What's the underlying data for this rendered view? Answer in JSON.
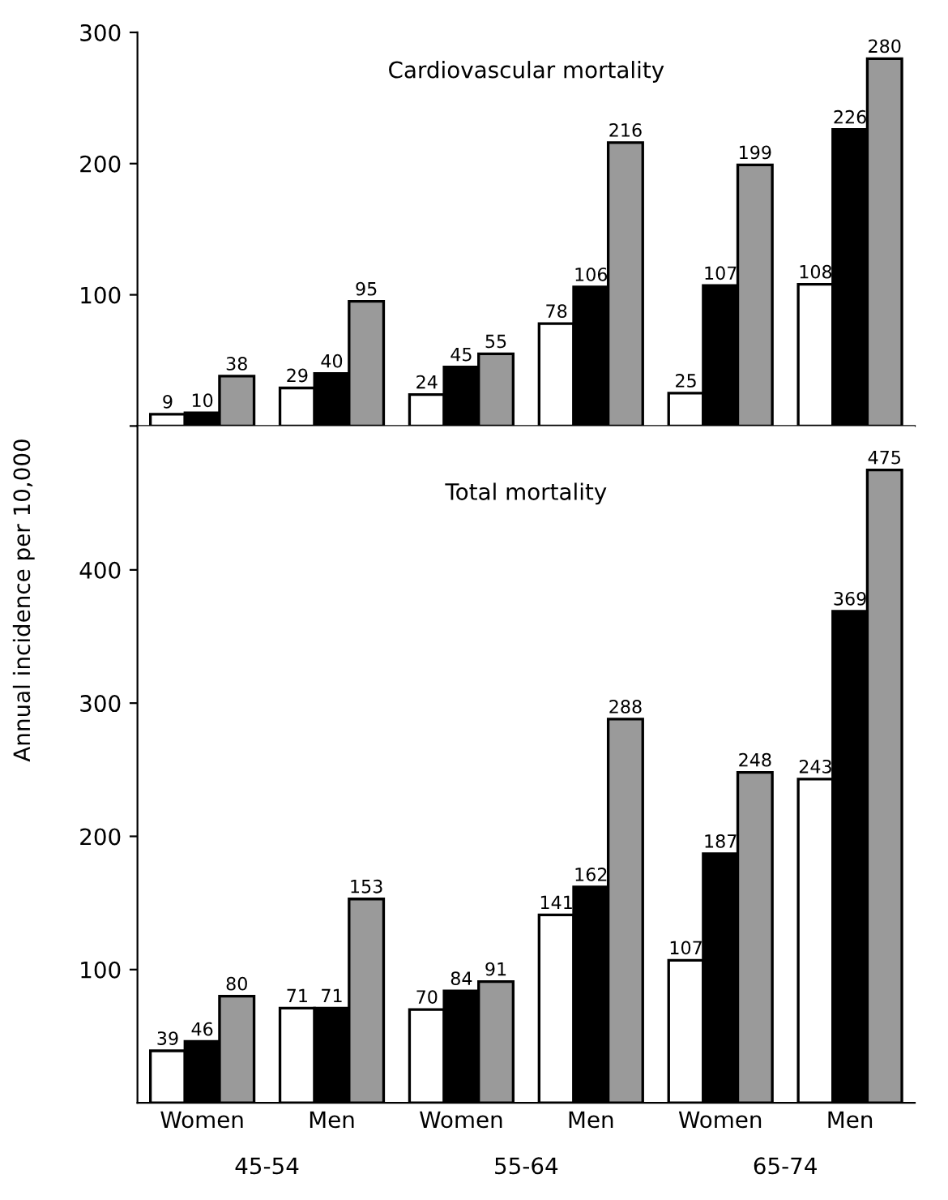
{
  "chart_data": [
    {
      "type": "bar",
      "title": "Cardiovascular mortality",
      "categories": [
        null,
        null,
        null,
        null,
        null,
        null
      ],
      "ylim": [
        0,
        300
      ],
      "yticks": [
        {
          "value": 0,
          "label": null
        },
        100,
        200,
        300
      ],
      "grid": false,
      "legend": false,
      "data_labels": true,
      "series": [
        {
          "color": "#ffffff",
          "values": [
            9,
            29,
            24,
            78,
            25,
            108
          ]
        },
        {
          "color": "#000000",
          "values": [
            10,
            40,
            45,
            106,
            107,
            226
          ]
        },
        {
          "color": "#9a9a9a",
          "values": [
            38,
            95,
            55,
            216,
            199,
            280
          ]
        }
      ]
    },
    {
      "type": "bar",
      "title": "Total mortality",
      "ylabel": "Annual incidence per 10,000",
      "categories": [
        "Women",
        "Men",
        "Women",
        "Men",
        "Women",
        "Men"
      ],
      "ylim": [
        0,
        508
      ],
      "yticks": [
        100,
        200,
        300,
        400
      ],
      "grid": false,
      "legend": false,
      "data_labels": true,
      "annotations": [
        "45-54",
        "55-64",
        "65-74"
      ],
      "series": [
        {
          "color": "#ffffff",
          "values": [
            39,
            71,
            70,
            141,
            107,
            243
          ]
        },
        {
          "color": "#000000",
          "values": [
            46,
            71,
            84,
            162,
            187,
            369
          ]
        },
        {
          "color": "#9a9a9a",
          "values": [
            80,
            153,
            91,
            288,
            248,
            475
          ]
        }
      ]
    }
  ]
}
